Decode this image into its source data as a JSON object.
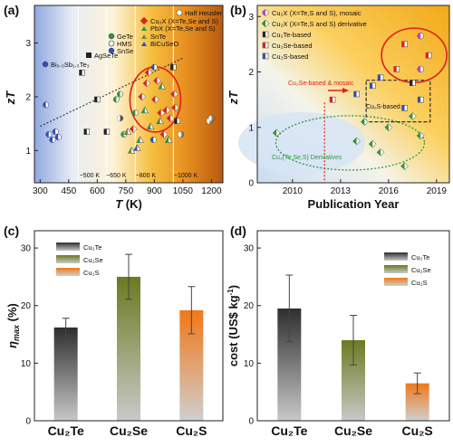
{
  "colors": {
    "cu2te": "#3c3c3c",
    "cu2se": "#7a8a30",
    "cu2s": "#f08020",
    "red": "#e0201a",
    "green": "#2a9a3a",
    "blue": "#3050c0"
  },
  "panels": {
    "a": {
      "label": "(a)"
    },
    "b": {
      "label": "(b)"
    },
    "c": {
      "label": "(c)"
    },
    "d": {
      "label": "(d)"
    }
  },
  "chart_data": [
    {
      "id": "a",
      "type": "scatter",
      "xlabel": "T (K)",
      "ylabel": "zT",
      "xlim": [
        270,
        1260
      ],
      "ylim": [
        0.4,
        3.7
      ],
      "xticks": [
        "300",
        "450",
        "600",
        "750",
        "900",
        "1050",
        "1200"
      ],
      "yticks": [
        "1",
        "2",
        "3"
      ],
      "background": "temperature gradient blue to orange",
      "annotations": [
        "~500 K",
        "~650 K",
        "~800 K",
        "~1000 K"
      ],
      "legend": [
        "Half Heusler",
        "Cu2X (X=Te,Se and S)",
        "PbX (X=Te,Se and S)",
        "GeTe",
        "SnTe",
        "HMS",
        "BiCuSeO",
        "SnSe",
        "AgSeTe",
        "Bi0.5Sb1.5Te3"
      ],
      "legend_display": {
        "half_heusler": "Half Heusler",
        "cu2x": "Cu₂X (X=Te,Se and S)",
        "pbx": "PbX (X=Te,Se and S)",
        "gete": "GeTe",
        "snte": "SnTe",
        "hms": "HMS",
        "bicuseo": "BiCuSeO",
        "snse": "SnSe",
        "agsete": "AgSeTe",
        "bisbte": "Bi₀.₅Sb₁.₅Te₃"
      },
      "trend_line": {
        "x": [
          300,
          1050
        ],
        "y": [
          1.45,
          2.72
        ]
      },
      "highlight_circle": {
        "x": 905,
        "y": 1.95,
        "label": "Cu2X cluster"
      },
      "points": [
        {
          "x": 330,
          "y": 1.85,
          "material": "Bi0.5Sb1.5Te3"
        },
        {
          "x": 345,
          "y": 1.3,
          "material": "Bi0.5Sb1.5Te3"
        },
        {
          "x": 365,
          "y": 1.2,
          "material": "Bi0.5Sb1.5Te3"
        },
        {
          "x": 380,
          "y": 1.35,
          "material": "Bi0.5Sb1.5Te3"
        },
        {
          "x": 395,
          "y": 1.25,
          "material": "Bi0.5Sb1.5Te3"
        },
        {
          "x": 520,
          "y": 2.45,
          "material": "AgSeTe"
        },
        {
          "x": 545,
          "y": 1.35,
          "material": "Cu2Te"
        },
        {
          "x": 600,
          "y": 1.95,
          "material": "Cu2Te"
        },
        {
          "x": 650,
          "y": 1.35,
          "material": "Cu2Te"
        },
        {
          "x": 700,
          "y": 1.95,
          "material": "GeTe"
        },
        {
          "x": 720,
          "y": 2.05,
          "material": "GeTe"
        },
        {
          "x": 720,
          "y": 1.6,
          "material": "HMS"
        },
        {
          "x": 740,
          "y": 1.3,
          "material": "GeTe"
        },
        {
          "x": 760,
          "y": 1.35,
          "material": "SnTe"
        },
        {
          "x": 780,
          "y": 1.0,
          "material": "SnTe"
        },
        {
          "x": 790,
          "y": 1.4,
          "material": "Cu2Se"
        },
        {
          "x": 800,
          "y": 1.7,
          "material": "GeTe"
        },
        {
          "x": 810,
          "y": 1.05,
          "material": "BiCuSeO"
        },
        {
          "x": 825,
          "y": 1.2,
          "material": "PbX"
        },
        {
          "x": 835,
          "y": 2.0,
          "material": "Cu2Se"
        },
        {
          "x": 850,
          "y": 1.75,
          "material": "PbX"
        },
        {
          "x": 860,
          "y": 2.25,
          "material": "Cu2Se"
        },
        {
          "x": 870,
          "y": 2.45,
          "material": "Cu2Se"
        },
        {
          "x": 880,
          "y": 1.45,
          "material": "PbX"
        },
        {
          "x": 895,
          "y": 1.2,
          "material": "SnSe"
        },
        {
          "x": 900,
          "y": 2.55,
          "material": "SnSe"
        },
        {
          "x": 905,
          "y": 1.95,
          "material": "Cu2Se"
        },
        {
          "x": 915,
          "y": 2.3,
          "material": "Cu2Se"
        },
        {
          "x": 930,
          "y": 1.55,
          "material": "PbX"
        },
        {
          "x": 935,
          "y": 1.7,
          "material": "Cu2Se"
        },
        {
          "x": 940,
          "y": 2.2,
          "material": "PbX"
        },
        {
          "x": 950,
          "y": 1.3,
          "material": "Cu2Se"
        },
        {
          "x": 965,
          "y": 1.75,
          "material": "Cu2Se"
        },
        {
          "x": 975,
          "y": 1.2,
          "material": "PbX"
        },
        {
          "x": 985,
          "y": 1.6,
          "material": "Cu2Se"
        },
        {
          "x": 1000,
          "y": 2.55,
          "material": "Cu2Te"
        },
        {
          "x": 1005,
          "y": 2.05,
          "material": "Cu2Se"
        },
        {
          "x": 1010,
          "y": 1.8,
          "material": "Cu2Se"
        },
        {
          "x": 1020,
          "y": 1.55,
          "material": "Cu2Te"
        },
        {
          "x": 1040,
          "y": 1.3,
          "material": "Half Heusler"
        },
        {
          "x": 1190,
          "y": 1.55,
          "material": "Half Heusler"
        },
        {
          "x": 1200,
          "y": 1.6,
          "material": "Half Heusler"
        }
      ]
    },
    {
      "id": "b",
      "type": "scatter",
      "xlabel": "Publication Year",
      "ylabel": "zT",
      "xlim": [
        2007.8,
        2019.8
      ],
      "ylim": [
        0,
        3.2
      ],
      "xticks": [
        "2010",
        "2013",
        "2016",
        "2019"
      ],
      "yticks": [
        "0",
        "1",
        "2",
        "3"
      ],
      "legend": [
        "Cu2X (X=Te,S and S), mosaic",
        "Cu2X (X=Te,S and S) derivative",
        "Cu2Te-based",
        "Cu2Se-based",
        "Cu2S-based"
      ],
      "legend_display": {
        "mosaic": "Cu₂X (X=Te,S and S), mosaic",
        "derivative": "Cu₂X (X=Te,S and S) derivative",
        "cu2te": "Cu₂Te-based",
        "cu2se": "Cu₂Se-based",
        "cu2s": "Cu₂S-based"
      },
      "annotations": {
        "mosaic_note": "Cu₂Se-based & mosaic",
        "cu2s_region": "Cu₂S-based",
        "derivative_region": "Cu₂(Te,Se,S) Derivatives"
      },
      "marker_year": 2012,
      "points": [
        {
          "x": 2009,
          "y": 0.9,
          "group": "derivative"
        },
        {
          "x": 2012.5,
          "y": 1.5,
          "group": "Cu2Se-based"
        },
        {
          "x": 2014,
          "y": 0.75,
          "group": "derivative"
        },
        {
          "x": 2014,
          "y": 1.6,
          "group": "Cu2S-based"
        },
        {
          "x": 2014.5,
          "y": 1.1,
          "group": "derivative"
        },
        {
          "x": 2015,
          "y": 0.7,
          "group": "derivative"
        },
        {
          "x": 2015,
          "y": 1.75,
          "group": "Cu2S-based"
        },
        {
          "x": 2015.5,
          "y": 0.55,
          "group": "derivative"
        },
        {
          "x": 2015.5,
          "y": 1.9,
          "group": "Cu2S-based"
        },
        {
          "x": 2016,
          "y": 1.0,
          "group": "derivative"
        },
        {
          "x": 2016.5,
          "y": 2.05,
          "group": "Cu2Se-based"
        },
        {
          "x": 2017,
          "y": 0.3,
          "group": "derivative"
        },
        {
          "x": 2017,
          "y": 1.35,
          "group": "Cu2S-based"
        },
        {
          "x": 2017,
          "y": 2.5,
          "group": "Cu2Se-based"
        },
        {
          "x": 2017.5,
          "y": 1.8,
          "group": "Cu2Te-based"
        },
        {
          "x": 2017.5,
          "y": 1.2,
          "group": "derivative"
        },
        {
          "x": 2018,
          "y": 0.85,
          "group": "derivative"
        },
        {
          "x": 2018,
          "y": 2.05,
          "group": "mosaic"
        },
        {
          "x": 2018,
          "y": 2.65,
          "group": "mosaic"
        },
        {
          "x": 2018,
          "y": 1.5,
          "group": "Cu2S-based"
        },
        {
          "x": 2018.5,
          "y": 2.3,
          "group": "Cu2Se-based"
        }
      ]
    },
    {
      "id": "c",
      "type": "bar",
      "categories": [
        "Cu2Te",
        "Cu2Se",
        "Cu2S"
      ],
      "category_display": [
        "Cu₂Te",
        "Cu₂Se",
        "Cu₂S"
      ],
      "values": [
        16.2,
        25.0,
        19.2
      ],
      "errors": [
        1.6,
        3.9,
        4.1
      ],
      "xlabel": "",
      "ylabel": "ηmax (%)",
      "ylabel_display": "η",
      "ylabel_sub": "max",
      "ylabel_unit": " (%)",
      "ylim": [
        0,
        33
      ],
      "yticks": [
        "0",
        "10",
        "20",
        "30"
      ],
      "legend_display": [
        "Cu₂Te",
        "Cu₂Se",
        "Cu₂S"
      ]
    },
    {
      "id": "d",
      "type": "bar",
      "categories": [
        "Cu2Te",
        "Cu2Se",
        "Cu2S"
      ],
      "category_display": [
        "Cu₂Te",
        "Cu₂Se",
        "Cu₂S"
      ],
      "values": [
        19.5,
        14.0,
        6.5
      ],
      "errors": [
        5.8,
        4.3,
        1.8
      ],
      "xlabel": "",
      "ylabel": "cost (US$ kg⁻¹)",
      "ylabel_display": "cost (US$ kg",
      "ylabel_sup": "-1",
      "ylabel_close": ")",
      "ylim": [
        0,
        33
      ],
      "yticks": [
        "0",
        "10",
        "20",
        "30"
      ],
      "legend_display": [
        "Cu₂Te",
        "Cu₂Se",
        "Cu₂S"
      ]
    }
  ]
}
